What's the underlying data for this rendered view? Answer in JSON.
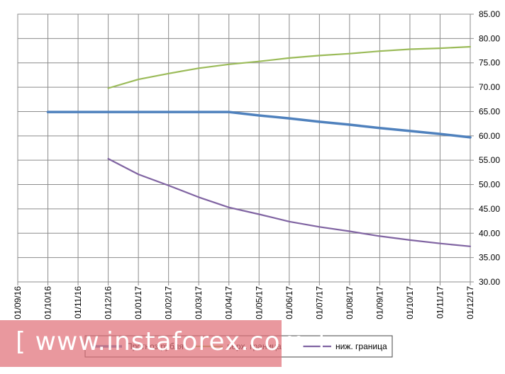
{
  "chart_data": {
    "type": "line",
    "x": [
      "01/09/16",
      "01/10/16",
      "01/11/16",
      "01/12/16",
      "01/01/17",
      "01/02/17",
      "01/03/17",
      "01/04/17",
      "01/05/17",
      "01/06/17",
      "01/07/17",
      "01/08/17",
      "01/09/17",
      "01/10/17",
      "01/11/17",
      "01/12/17"
    ],
    "y_ticks": [
      "30.00",
      "35.00",
      "40.00",
      "45.00",
      "50.00",
      "55.00",
      "60.00",
      "65.00",
      "70.00",
      "75.00",
      "80.00",
      "85.00"
    ],
    "ylim": [
      30,
      85
    ],
    "y_axis_side": "right",
    "grid": true,
    "legend_position": "bottom",
    "series": [
      {
        "name": "Прогноз рубля",
        "color": "#4f81bd",
        "values": [
          null,
          64.9,
          64.9,
          64.9,
          64.9,
          64.9,
          64.9,
          64.9,
          64.2,
          63.6,
          62.9,
          62.3,
          61.6,
          61.0,
          60.4,
          59.7
        ]
      },
      {
        "name": "верх. граница",
        "color": "#9bbb59",
        "values": [
          null,
          null,
          null,
          69.8,
          71.6,
          72.8,
          73.9,
          74.7,
          75.3,
          76.0,
          76.5,
          76.9,
          77.4,
          77.8,
          78.0,
          78.3
        ]
      },
      {
        "name": "ниж. граница",
        "color": "#8064a2",
        "values": [
          null,
          null,
          null,
          55.3,
          52.1,
          49.8,
          47.4,
          45.3,
          43.9,
          42.4,
          41.3,
          40.4,
          39.4,
          38.6,
          37.9,
          37.3
        ]
      }
    ]
  },
  "watermark": "[ www.instaforex.com ]"
}
